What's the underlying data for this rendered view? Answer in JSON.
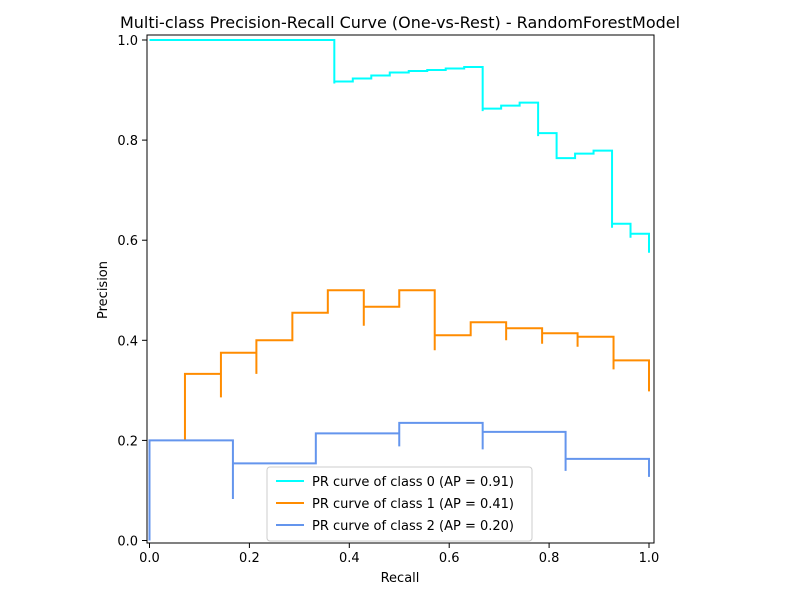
{
  "chart_data": {
    "type": "line",
    "title": "Multi-class Precision-Recall Curve (One-vs-Rest) - RandomForestModel",
    "xlabel": "Recall",
    "ylabel": "Precision",
    "xlim": [
      -0.005,
      1.01
    ],
    "ylim": [
      -0.005,
      1.01
    ],
    "xticks": [
      0.0,
      0.2,
      0.4,
      0.6,
      0.8,
      1.0
    ],
    "xtick_labels": [
      "0.0",
      "0.2",
      "0.4",
      "0.6",
      "0.8",
      "1.0"
    ],
    "yticks": [
      0.0,
      0.2,
      0.4,
      0.6,
      0.8,
      1.0
    ],
    "ytick_labels": [
      "0.0",
      "0.2",
      "0.4",
      "0.6",
      "0.8",
      "1.0"
    ],
    "grid": false,
    "legend_position": "bottom-center",
    "series": [
      {
        "name": "PR curve of class 0 (AP = 0.91)",
        "color": "#00ffff",
        "drawstyle": "steps-post",
        "points": [
          [
            0.0,
            1.0
          ],
          [
            0.37,
            1.0
          ],
          [
            0.37,
            0.913
          ],
          [
            0.37,
            0.917
          ],
          [
            0.407,
            0.917
          ],
          [
            0.407,
            0.923
          ],
          [
            0.444,
            0.923
          ],
          [
            0.444,
            0.929
          ],
          [
            0.481,
            0.929
          ],
          [
            0.481,
            0.935
          ],
          [
            0.519,
            0.935
          ],
          [
            0.519,
            0.938
          ],
          [
            0.556,
            0.938
          ],
          [
            0.556,
            0.94
          ],
          [
            0.593,
            0.94
          ],
          [
            0.593,
            0.943
          ],
          [
            0.63,
            0.943
          ],
          [
            0.63,
            0.946
          ],
          [
            0.667,
            0.946
          ],
          [
            0.667,
            0.858
          ],
          [
            0.667,
            0.863
          ],
          [
            0.704,
            0.863
          ],
          [
            0.704,
            0.869
          ],
          [
            0.741,
            0.869
          ],
          [
            0.741,
            0.875
          ],
          [
            0.778,
            0.875
          ],
          [
            0.778,
            0.808
          ],
          [
            0.778,
            0.814
          ],
          [
            0.815,
            0.814
          ],
          [
            0.815,
            0.764
          ],
          [
            0.852,
            0.764
          ],
          [
            0.852,
            0.773
          ],
          [
            0.889,
            0.773
          ],
          [
            0.889,
            0.779
          ],
          [
            0.926,
            0.779
          ],
          [
            0.926,
            0.625
          ],
          [
            0.926,
            0.633
          ],
          [
            0.963,
            0.633
          ],
          [
            0.963,
            0.605
          ],
          [
            0.963,
            0.613
          ],
          [
            1.0,
            0.613
          ],
          [
            1.0,
            0.575
          ]
        ]
      },
      {
        "name": "PR curve of class 1 (AP = 0.41)",
        "color": "#ff8c00",
        "drawstyle": "steps-post",
        "points": [
          [
            0.071,
            0.2
          ],
          [
            0.071,
            0.333
          ],
          [
            0.143,
            0.333
          ],
          [
            0.143,
            0.286
          ],
          [
            0.143,
            0.375
          ],
          [
            0.214,
            0.375
          ],
          [
            0.214,
            0.333
          ],
          [
            0.214,
            0.4
          ],
          [
            0.286,
            0.4
          ],
          [
            0.286,
            0.455
          ],
          [
            0.357,
            0.455
          ],
          [
            0.357,
            0.5
          ],
          [
            0.429,
            0.5
          ],
          [
            0.429,
            0.429
          ],
          [
            0.429,
            0.467
          ],
          [
            0.5,
            0.467
          ],
          [
            0.5,
            0.5
          ],
          [
            0.571,
            0.5
          ],
          [
            0.571,
            0.38
          ],
          [
            0.571,
            0.41
          ],
          [
            0.643,
            0.41
          ],
          [
            0.643,
            0.436
          ],
          [
            0.714,
            0.436
          ],
          [
            0.714,
            0.4
          ],
          [
            0.714,
            0.424
          ],
          [
            0.786,
            0.424
          ],
          [
            0.786,
            0.393
          ],
          [
            0.786,
            0.414
          ],
          [
            0.857,
            0.414
          ],
          [
            0.857,
            0.387
          ],
          [
            0.857,
            0.407
          ],
          [
            0.929,
            0.407
          ],
          [
            0.929,
            0.342
          ],
          [
            0.929,
            0.36
          ],
          [
            1.0,
            0.36
          ],
          [
            1.0,
            0.298
          ]
        ]
      },
      {
        "name": "PR curve of class 2 (AP = 0.20)",
        "color": "#6495ed",
        "drawstyle": "steps-post",
        "points": [
          [
            0.0,
            0.0
          ],
          [
            0.0,
            0.2
          ],
          [
            0.167,
            0.2
          ],
          [
            0.167,
            0.083
          ],
          [
            0.167,
            0.154
          ],
          [
            0.333,
            0.154
          ],
          [
            0.333,
            0.214
          ],
          [
            0.5,
            0.214
          ],
          [
            0.5,
            0.188
          ],
          [
            0.5,
            0.235
          ],
          [
            0.667,
            0.235
          ],
          [
            0.667,
            0.182
          ],
          [
            0.667,
            0.217
          ],
          [
            0.833,
            0.217
          ],
          [
            0.833,
            0.139
          ],
          [
            0.833,
            0.163
          ],
          [
            1.0,
            0.163
          ],
          [
            1.0,
            0.127
          ]
        ]
      }
    ]
  }
}
